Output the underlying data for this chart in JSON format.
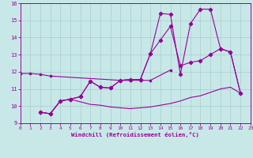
{
  "bg_color": "#c8e8e8",
  "line_color": "#990099",
  "grid_color": "#a8cccc",
  "xlim": [
    0,
    23
  ],
  "ylim": [
    9,
    16
  ],
  "yticks": [
    9,
    10,
    11,
    12,
    13,
    14,
    15,
    16
  ],
  "xticks": [
    0,
    1,
    2,
    3,
    4,
    5,
    6,
    7,
    8,
    9,
    10,
    11,
    12,
    13,
    14,
    15,
    16,
    17,
    18,
    19,
    20,
    21,
    22,
    23
  ],
  "xlabel": "Windchill (Refroidissement éolien,°C)",
  "s1x": [
    0,
    1,
    2,
    3,
    10,
    11,
    12,
    13,
    15
  ],
  "s1y": [
    11.9,
    11.9,
    11.85,
    11.75,
    11.5,
    11.5,
    11.5,
    11.5,
    12.1
  ],
  "s2x": [
    2,
    3,
    4,
    5,
    7,
    8,
    9,
    10,
    11,
    12,
    13,
    14,
    15,
    16,
    17,
    18,
    19,
    20,
    21,
    22
  ],
  "s2y": [
    9.65,
    9.55,
    10.3,
    10.4,
    10.1,
    10.05,
    9.95,
    9.9,
    9.85,
    9.9,
    9.95,
    10.05,
    10.15,
    10.3,
    10.5,
    10.6,
    10.8,
    11.0,
    11.1,
    10.75
  ],
  "s3x": [
    2,
    3,
    4,
    5,
    6,
    7,
    8,
    9,
    10,
    11,
    12,
    13,
    14,
    15,
    16,
    17,
    18,
    19,
    20,
    21,
    22
  ],
  "s3y": [
    9.65,
    9.55,
    10.3,
    10.4,
    10.55,
    11.45,
    11.1,
    11.05,
    11.5,
    11.55,
    11.55,
    13.05,
    15.4,
    15.35,
    11.85,
    14.8,
    15.65,
    15.65,
    13.35,
    13.15,
    10.75
  ],
  "s4x": [
    2,
    3,
    4,
    5,
    6,
    7,
    8,
    9,
    10,
    11,
    12,
    13,
    14,
    15,
    16,
    17,
    18,
    19,
    20,
    21,
    22
  ],
  "s4y": [
    9.65,
    9.55,
    10.3,
    10.4,
    10.55,
    11.45,
    11.1,
    11.05,
    11.5,
    11.55,
    11.55,
    13.05,
    13.85,
    14.65,
    12.35,
    12.55,
    12.65,
    13.0,
    13.35,
    13.15,
    10.75
  ]
}
